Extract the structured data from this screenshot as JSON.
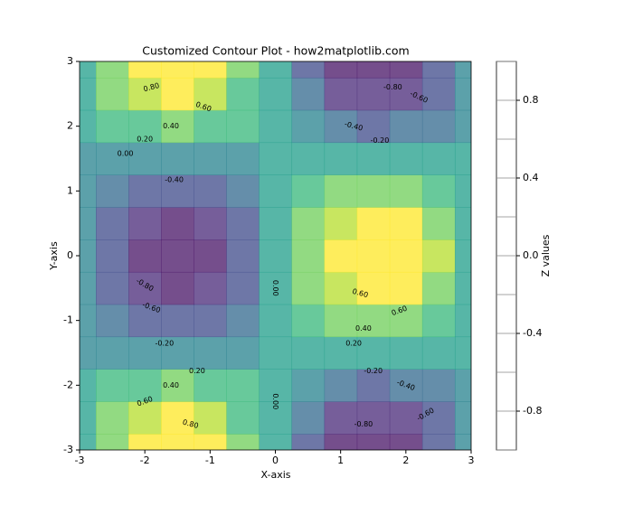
{
  "chart_data": {
    "type": "contourf",
    "title": "Customized Contour Plot - how2matplotlib.com",
    "x_label": "X-axis",
    "y_label": "Y-axis",
    "colorbar_label": "Z values",
    "x": [
      -3,
      -2.5,
      -2,
      -1.5,
      -1,
      -0.5,
      0,
      0.5,
      1,
      1.5,
      2,
      2.5,
      3
    ],
    "y": [
      -3,
      -2.5,
      -2,
      -1.5,
      -1,
      -0.5,
      0,
      0.5,
      1,
      1.5,
      2,
      2.5,
      3
    ],
    "z": [
      [
        0.14,
        0.59,
        0.9,
        0.99,
        0.83,
        0.47,
        0,
        -0.47,
        -0.83,
        -0.99,
        -0.9,
        -0.59,
        -0.14
      ],
      [
        0.11,
        0.48,
        0.73,
        0.8,
        0.67,
        0.38,
        0,
        -0.38,
        -0.67,
        -0.8,
        -0.73,
        -0.48,
        -0.11
      ],
      [
        0.06,
        0.25,
        0.38,
        0.41,
        0.35,
        0.2,
        0,
        -0.2,
        -0.35,
        -0.41,
        -0.38,
        -0.25,
        -0.06
      ],
      [
        -0.01,
        -0.04,
        -0.06,
        -0.07,
        -0.06,
        -0.03,
        0,
        0.03,
        0.06,
        0.07,
        0.06,
        0.04,
        0.01
      ],
      [
        -0.08,
        -0.32,
        -0.49,
        -0.54,
        -0.45,
        -0.26,
        0,
        0.26,
        0.45,
        0.54,
        0.49,
        0.32,
        0.08
      ],
      [
        -0.12,
        -0.53,
        -0.8,
        -0.88,
        -0.74,
        -0.42,
        0,
        0.42,
        0.74,
        0.88,
        0.8,
        0.53,
        0.12
      ],
      [
        -0.14,
        -0.6,
        -0.91,
        -1.0,
        -0.84,
        -0.48,
        0,
        0.48,
        0.84,
        1.0,
        0.91,
        0.6,
        0.14
      ],
      [
        -0.12,
        -0.53,
        -0.8,
        -0.88,
        -0.74,
        -0.42,
        0,
        0.42,
        0.74,
        0.88,
        0.8,
        0.53,
        0.12
      ],
      [
        -0.08,
        -0.32,
        -0.49,
        -0.54,
        -0.45,
        -0.26,
        0,
        0.26,
        0.45,
        0.54,
        0.49,
        0.32,
        0.08
      ],
      [
        -0.01,
        -0.04,
        -0.06,
        -0.07,
        -0.06,
        -0.03,
        0,
        0.03,
        0.06,
        0.07,
        0.06,
        0.04,
        0.01
      ],
      [
        0.06,
        0.25,
        0.38,
        0.41,
        0.35,
        0.2,
        0,
        -0.2,
        -0.35,
        -0.41,
        -0.38,
        -0.25,
        -0.06
      ],
      [
        0.11,
        0.48,
        0.73,
        0.8,
        0.67,
        0.38,
        0,
        -0.38,
        -0.67,
        -0.8,
        -0.73,
        -0.48,
        -0.11
      ],
      [
        0.14,
        0.59,
        0.9,
        0.99,
        0.83,
        0.47,
        0,
        -0.47,
        -0.83,
        -0.99,
        -0.9,
        -0.59,
        -0.14
      ]
    ],
    "levels": [
      -1,
      -0.8,
      -0.6,
      -0.4,
      -0.2,
      0,
      0.2,
      0.4,
      0.6,
      0.8,
      1
    ],
    "colors": [
      "#471365",
      "#482878",
      "#3e4989",
      "#31688e",
      "#26828e",
      "#1f9e89",
      "#35b779",
      "#6ece58",
      "#b5de2b",
      "#fde725"
    ],
    "alpha": 0.75,
    "xlim": [
      -3,
      3
    ],
    "xticks": [
      -3,
      -2,
      -1,
      0,
      1,
      2,
      3
    ],
    "ylim": [
      -3,
      3
    ],
    "yticks": [
      -3,
      -2,
      -1,
      0,
      1,
      2,
      3
    ],
    "clim": [
      -1,
      1
    ],
    "cticks": [
      -0.8,
      -0.4,
      {
        "value": 0,
        "label": "0.0"
      },
      0.4,
      0.8
    ],
    "contour_labels": [
      {
        "value": 0.8,
        "label": "0.80"
      },
      {
        "value": 0.6,
        "label": "0.60"
      },
      {
        "value": 0.4,
        "label": "0.40"
      },
      {
        "value": 0.2,
        "label": "0.20"
      },
      {
        "value": 0,
        "label": "0.00"
      },
      {
        "value": -0.8,
        "label": "-0.80"
      },
      {
        "value": -0.6,
        "label": "-0.60"
      },
      {
        "value": -0.4,
        "label": "-0.40"
      },
      {
        "value": -0.2,
        "label": "-0.20"
      },
      {
        "value": -0.4,
        "label": "-0.40"
      },
      {
        "value": -0.8,
        "label": "-0.80"
      },
      {
        "value": -0.6,
        "label": "-0.60"
      },
      {
        "value": -0.2,
        "label": "-0.20"
      },
      {
        "value": 0,
        "label": "0.00"
      },
      {
        "value": 0.6,
        "label": "0.60"
      },
      {
        "value": 0.6,
        "label": "0.60"
      },
      {
        "value": 0.4,
        "label": "0.40"
      },
      {
        "value": 0.2,
        "label": "0.20"
      },
      {
        "value": 0.2,
        "label": "0.20"
      },
      {
        "value": 0.4,
        "label": "0.40"
      },
      {
        "value": 0.6,
        "label": "0.60"
      },
      {
        "value": 0.8,
        "label": "0.80"
      },
      {
        "value": 0,
        "label": "0.00"
      },
      {
        "value": -0.2,
        "label": "-0.20"
      },
      {
        "value": -0.4,
        "label": "-0.40"
      },
      {
        "value": -0.8,
        "label": "-0.80"
      },
      {
        "value": -0.6,
        "label": "-0.60"
      }
    ]
  }
}
